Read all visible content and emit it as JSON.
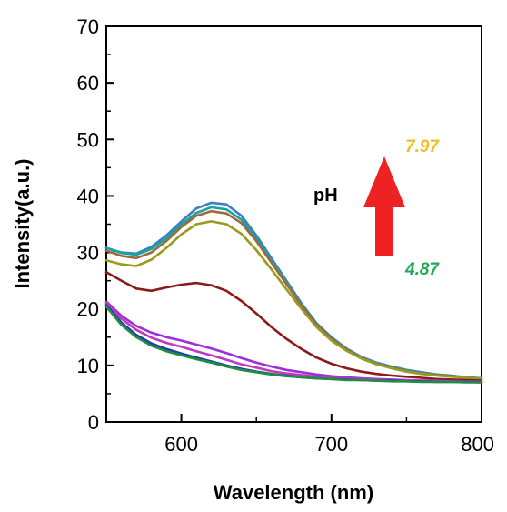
{
  "chart_data": {
    "type": "line",
    "xlabel": "Wavelength (nm)",
    "ylabel": "Intensity(a.u.)",
    "xlim": [
      550,
      800
    ],
    "ylim": [
      0,
      70
    ],
    "xticks": [
      "600",
      "700",
      "800"
    ],
    "yticks": [
      "0",
      "10",
      "20",
      "30",
      "40",
      "50",
      "60",
      "70"
    ],
    "grid": false,
    "annotations": {
      "ph_label": "pH",
      "high_value": "7.97",
      "low_value": "4.87",
      "high_color": "#f0c020",
      "low_color": "#22aa55",
      "arrow_color": "#ee2222",
      "arrow_direction": "up"
    },
    "x": [
      550,
      560,
      570,
      580,
      590,
      600,
      610,
      620,
      630,
      640,
      650,
      660,
      670,
      680,
      690,
      700,
      710,
      720,
      730,
      740,
      750,
      760,
      770,
      780,
      790,
      800
    ],
    "series": [
      {
        "color": "#3b7fc4",
        "values": [
          30.8,
          30.0,
          29.8,
          31.0,
          33.0,
          35.5,
          37.8,
          38.8,
          38.5,
          36.5,
          33.0,
          29.0,
          25.0,
          21.0,
          17.5,
          15.0,
          13.0,
          11.5,
          10.5,
          9.8,
          9.2,
          8.8,
          8.4,
          8.2,
          7.9,
          7.7
        ]
      },
      {
        "color": "#1aa3a3",
        "values": [
          30.8,
          29.9,
          29.6,
          30.6,
          32.5,
          35.0,
          37.0,
          38.0,
          37.6,
          35.8,
          32.5,
          28.6,
          24.7,
          20.8,
          17.3,
          14.8,
          12.9,
          11.4,
          10.4,
          9.7,
          9.1,
          8.7,
          8.4,
          8.1,
          7.9,
          7.7
        ]
      },
      {
        "color": "#a0683a",
        "values": [
          30.3,
          29.4,
          29.0,
          30.0,
          32.0,
          34.5,
          36.5,
          37.3,
          36.9,
          35.2,
          32.0,
          28.2,
          24.4,
          20.6,
          17.2,
          14.7,
          12.8,
          11.3,
          10.3,
          9.6,
          9.0,
          8.6,
          8.3,
          8.1,
          7.8,
          7.6
        ]
      },
      {
        "color": "#9a9a1e",
        "values": [
          28.6,
          27.9,
          27.6,
          28.7,
          30.8,
          33.2,
          35.0,
          35.5,
          35.0,
          33.3,
          30.4,
          27.0,
          23.5,
          20.0,
          16.8,
          14.4,
          12.6,
          11.2,
          10.2,
          9.5,
          8.9,
          8.5,
          8.2,
          8.0,
          7.8,
          7.6
        ]
      },
      {
        "color": "#8b1a1a",
        "values": [
          26.5,
          25.0,
          23.6,
          23.2,
          23.8,
          24.3,
          24.6,
          24.2,
          23.2,
          21.4,
          19.2,
          16.8,
          14.7,
          12.9,
          11.4,
          10.3,
          9.5,
          8.9,
          8.5,
          8.2,
          8.0,
          7.8,
          7.6,
          7.5,
          7.4,
          7.3
        ]
      },
      {
        "color": "#9b30d9",
        "values": [
          21.3,
          18.8,
          17.0,
          15.8,
          15.0,
          14.4,
          13.7,
          13.0,
          12.2,
          11.3,
          10.5,
          9.8,
          9.2,
          8.8,
          8.4,
          8.1,
          7.9,
          7.7,
          7.6,
          7.5,
          7.4,
          7.3,
          7.3,
          7.2,
          7.2,
          7.1
        ]
      },
      {
        "color": "#c03ac0",
        "values": [
          21.0,
          18.3,
          16.3,
          14.9,
          14.0,
          13.3,
          12.5,
          11.8,
          11.0,
          10.2,
          9.6,
          9.0,
          8.6,
          8.3,
          8.0,
          7.8,
          7.7,
          7.6,
          7.5,
          7.4,
          7.3,
          7.3,
          7.2,
          7.2,
          7.1,
          7.1
        ]
      },
      {
        "color": "#1f3fa8",
        "values": [
          20.7,
          17.6,
          15.4,
          13.9,
          12.9,
          12.1,
          11.4,
          10.7,
          10.0,
          9.4,
          8.9,
          8.5,
          8.2,
          7.9,
          7.7,
          7.6,
          7.5,
          7.4,
          7.3,
          7.3,
          7.2,
          7.2,
          7.1,
          7.1,
          7.1,
          7.0
        ]
      },
      {
        "color": "#1f8f3f",
        "values": [
          20.4,
          17.2,
          15.0,
          13.5,
          12.5,
          11.8,
          11.1,
          10.5,
          9.8,
          9.2,
          8.8,
          8.4,
          8.1,
          7.9,
          7.7,
          7.6,
          7.4,
          7.4,
          7.3,
          7.2,
          7.2,
          7.1,
          7.1,
          7.1,
          7.0,
          7.0
        ]
      }
    ]
  }
}
